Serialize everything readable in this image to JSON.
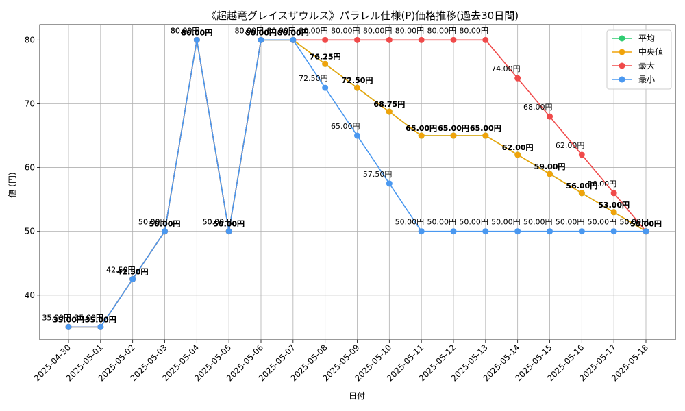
{
  "chart_data": {
    "type": "line",
    "title": "《超越竜グレイスザウルス》パラレル仕様(P)価格推移(過去30日間)",
    "xlabel": "日付",
    "ylabel": "値 (円)",
    "ylim": [
      33,
      82.4
    ],
    "yticks": [
      40,
      50,
      60,
      70,
      80
    ],
    "grid": true,
    "legend_position": "top-right",
    "label_suffix": "円",
    "categories": [
      "2025-04-30",
      "2025-05-01",
      "2025-05-02",
      "2025-05-03",
      "2025-05-04",
      "2025-05-05",
      "2025-05-06",
      "2025-05-07",
      "2025-05-08",
      "2025-05-09",
      "2025-05-10",
      "2025-05-11",
      "2025-05-12",
      "2025-05-13",
      "2025-05-14",
      "2025-05-15",
      "2025-05-16",
      "2025-05-17",
      "2025-05-18"
    ],
    "series": [
      {
        "name": "平均",
        "color": "#2ecc71",
        "values": [
          35,
          35,
          42.5,
          50,
          80,
          50,
          80,
          80,
          76.25,
          72.5,
          68.75,
          65,
          65,
          65,
          62,
          59,
          56,
          53,
          50
        ]
      },
      {
        "name": "中央値",
        "color": "#f0a30a",
        "values": [
          35,
          35,
          42.5,
          50,
          80,
          50,
          80,
          80,
          76.25,
          72.5,
          68.75,
          65,
          65,
          65,
          62,
          59,
          56,
          53,
          50
        ]
      },
      {
        "name": "最大",
        "color": "#f04a4a",
        "values": [
          35,
          35,
          42.5,
          50,
          80,
          50,
          80,
          80,
          80,
          80,
          80,
          80,
          80,
          80,
          74,
          68,
          62,
          56,
          50
        ]
      },
      {
        "name": "最小",
        "color": "#4a98f0",
        "values": [
          35,
          35,
          42.5,
          50,
          80,
          50,
          80,
          80,
          72.5,
          65,
          57.5,
          50,
          50,
          50,
          50,
          50,
          50,
          50,
          50
        ]
      }
    ]
  }
}
